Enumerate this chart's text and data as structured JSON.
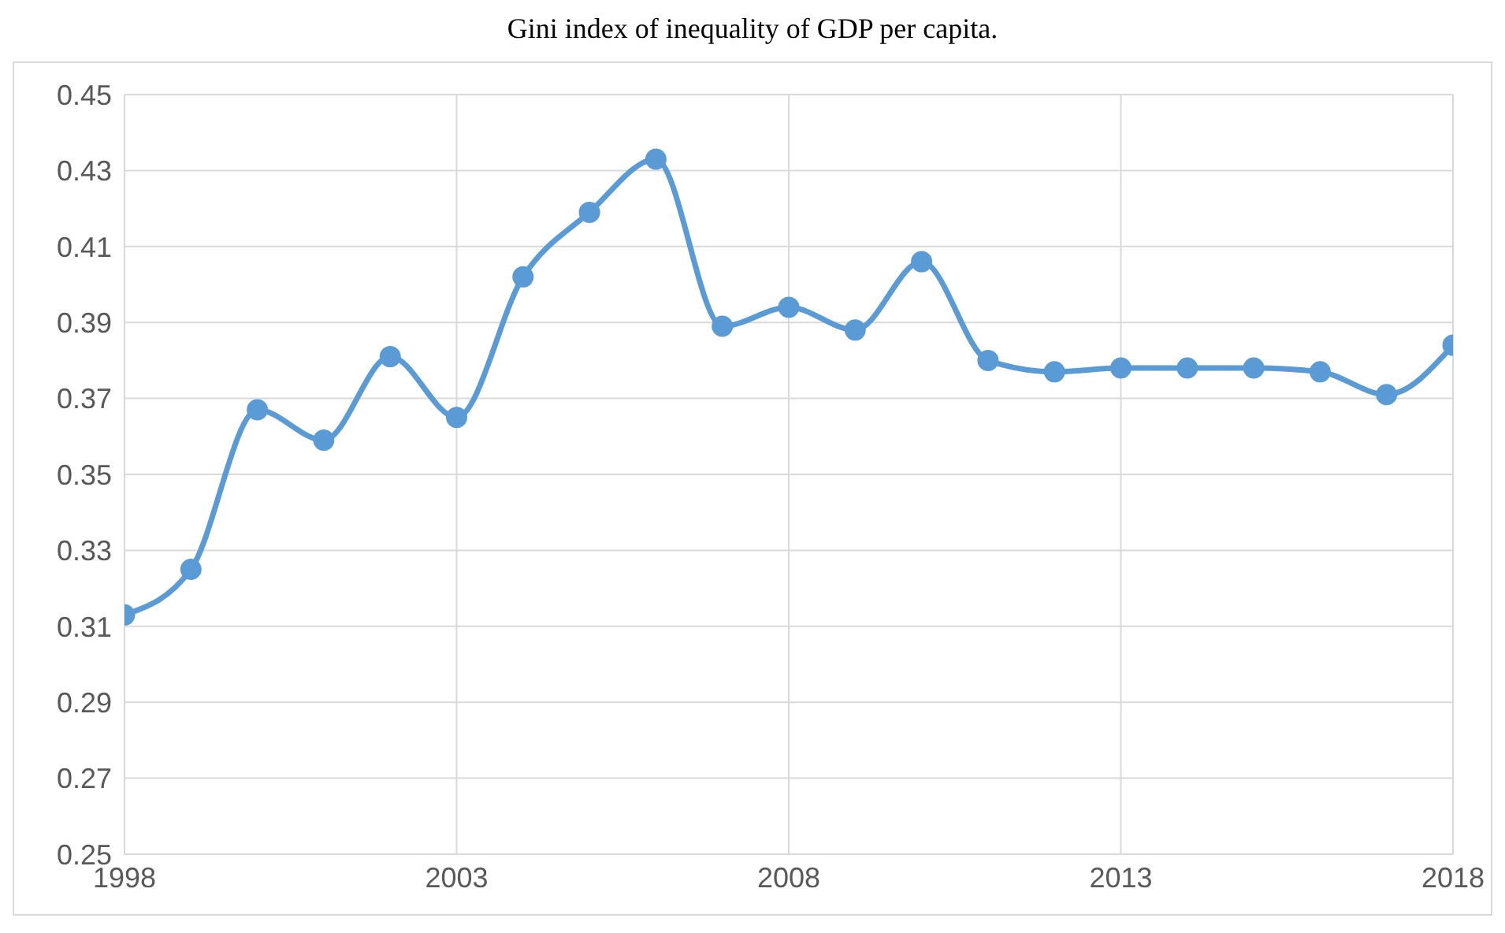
{
  "chart_data": {
    "type": "line",
    "title": "Gini index of inequality of GDP per capita.",
    "x": [
      1998,
      1999,
      2000,
      2001,
      2002,
      2003,
      2004,
      2005,
      2006,
      2007,
      2008,
      2009,
      2010,
      2011,
      2012,
      2013,
      2014,
      2015,
      2016,
      2017,
      2018
    ],
    "series": [
      {
        "color": "#5b9bd5",
        "values": [
          0.313,
          0.325,
          0.367,
          0.359,
          0.381,
          0.365,
          0.402,
          0.419,
          0.433,
          0.389,
          0.394,
          0.388,
          0.406,
          0.38,
          0.377,
          0.378,
          0.378,
          0.378,
          0.377,
          0.371,
          0.384
        ]
      }
    ],
    "xlim": [
      1998,
      2018
    ],
    "xticks": [
      1998,
      2003,
      2008,
      2013,
      2018
    ],
    "ylim": [
      0.25,
      0.45
    ],
    "yticks": [
      0.25,
      0.27,
      0.29,
      0.31,
      0.33,
      0.35,
      0.37,
      0.39,
      0.41,
      0.43,
      0.45
    ],
    "grid": true,
    "legend": false,
    "marker": "circle",
    "line_style": "solid"
  }
}
